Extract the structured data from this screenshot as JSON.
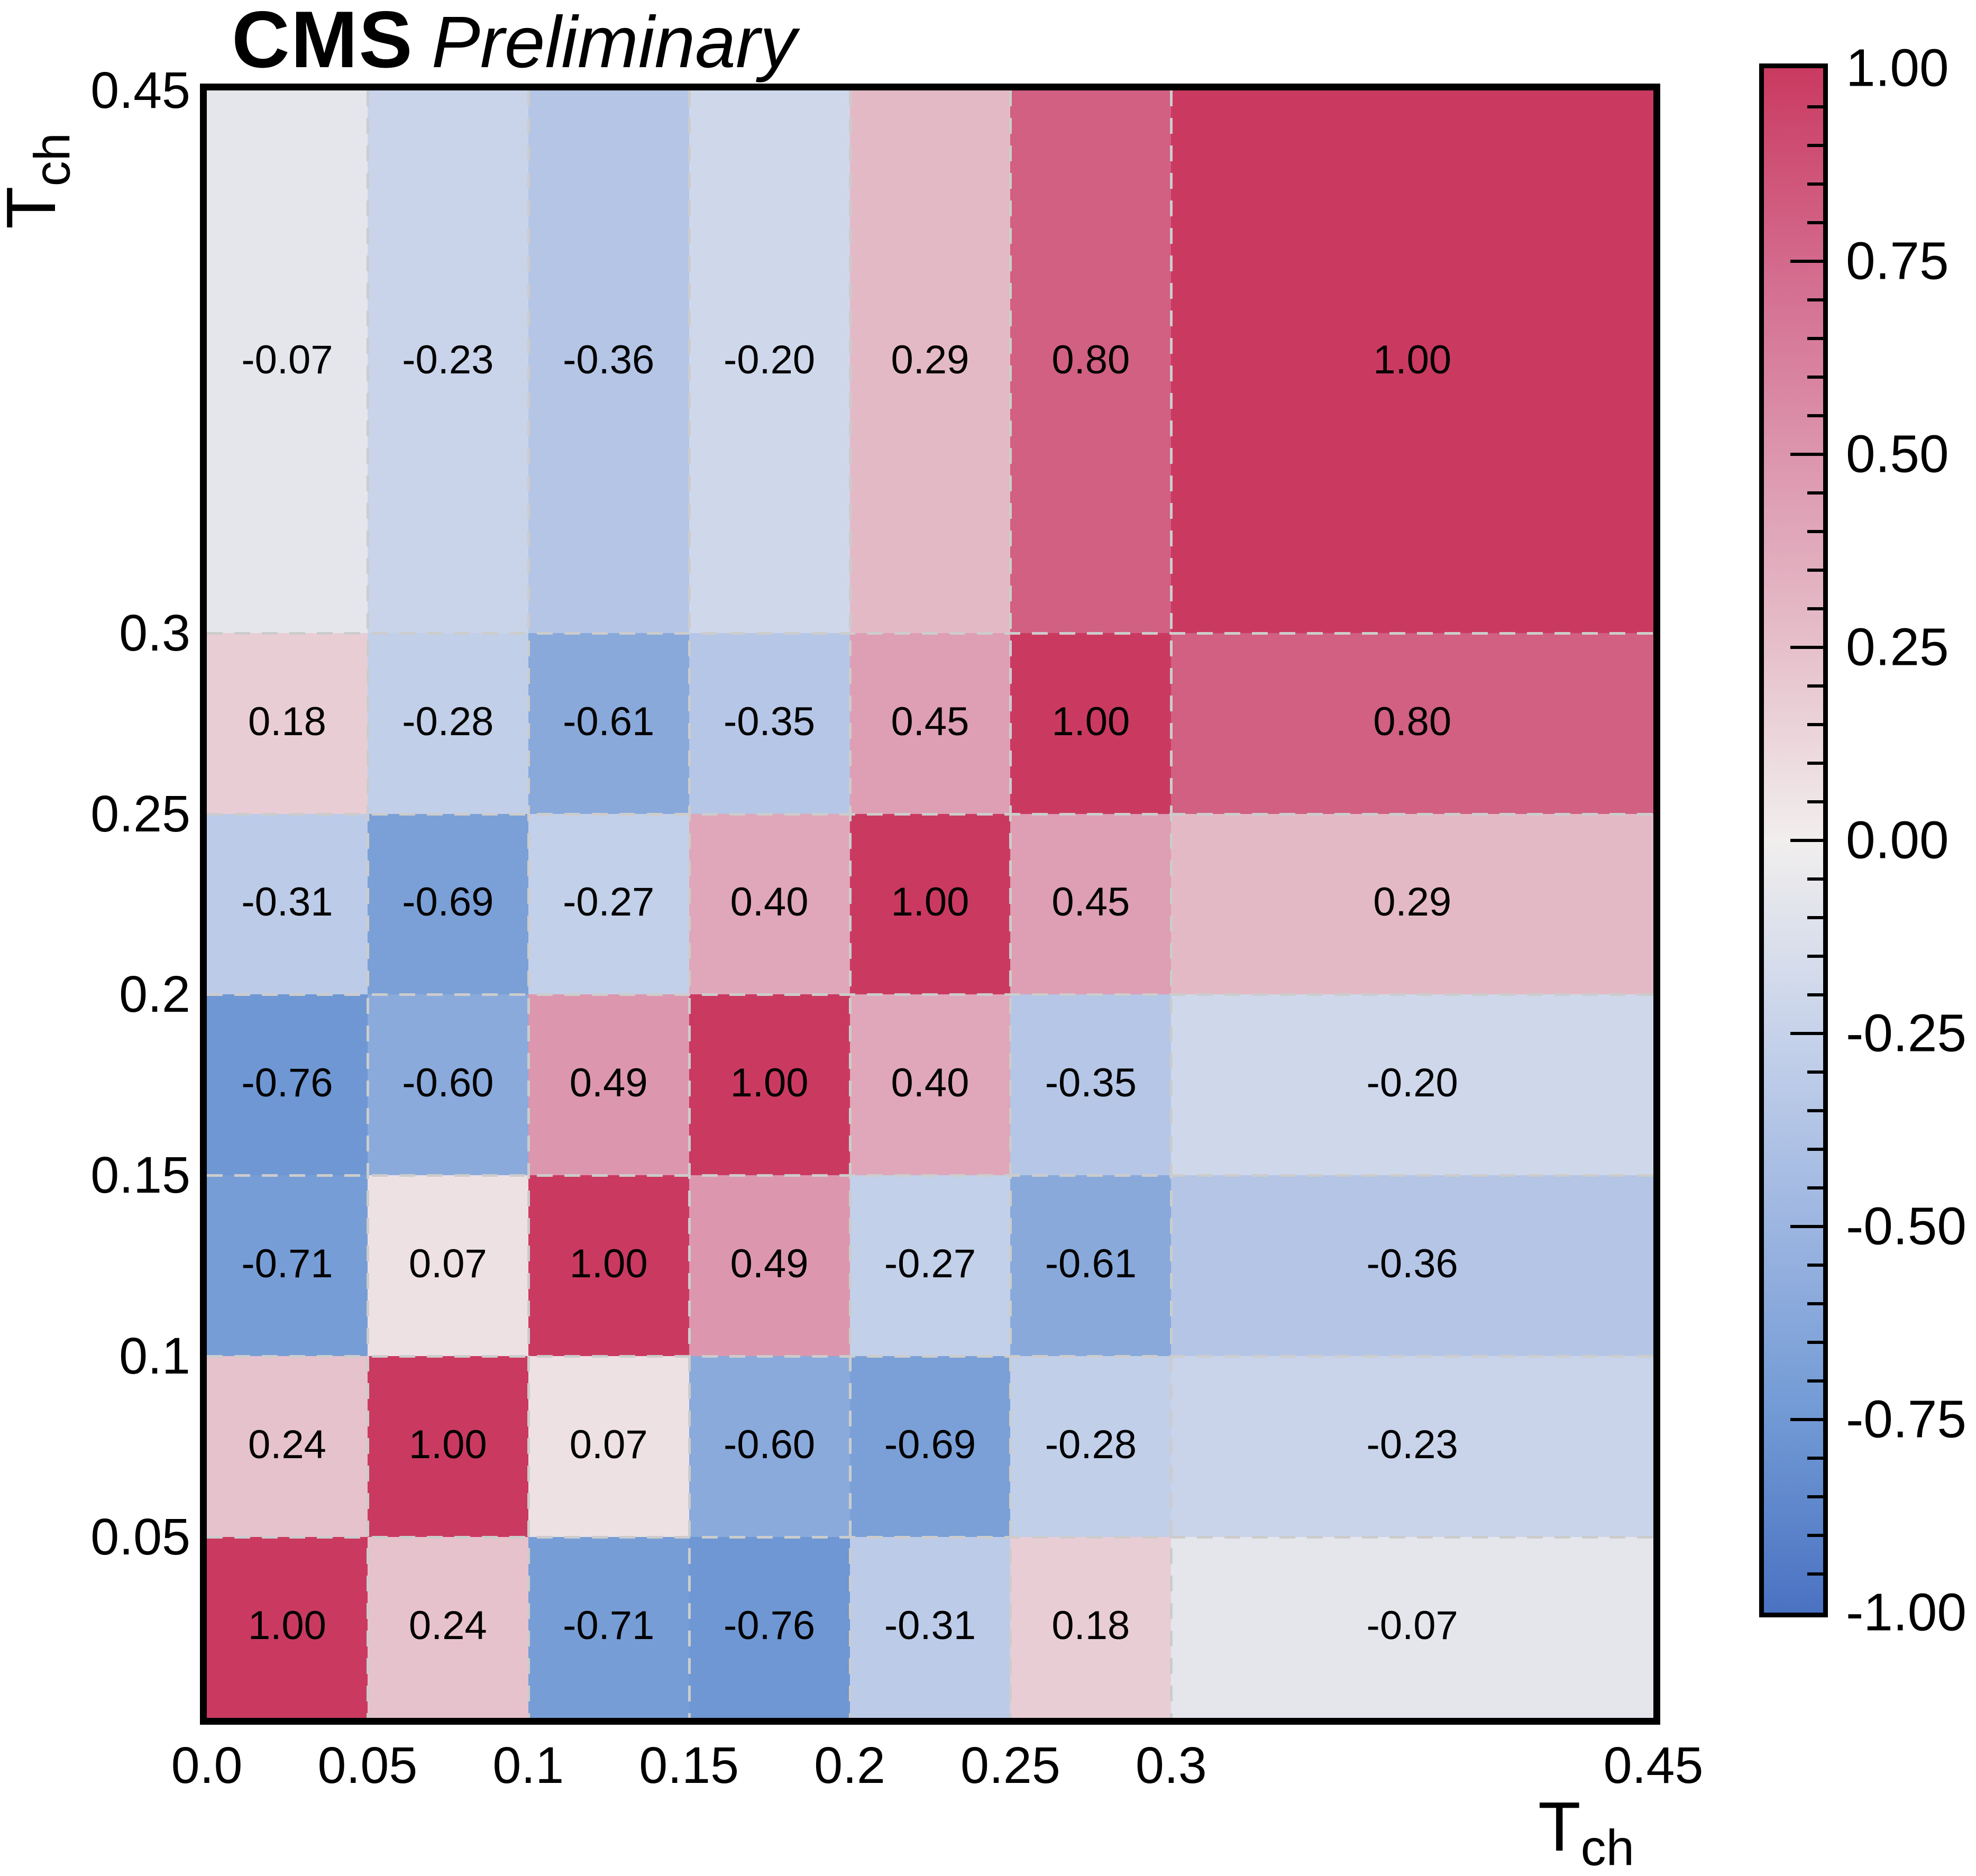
{
  "title": {
    "experiment": "CMS",
    "status": "Preliminary"
  },
  "x_axis": {
    "title_main": "T",
    "title_sub": "ch",
    "tick_labels": [
      "0.0",
      "0.05",
      "0.1",
      "0.15",
      "0.2",
      "0.25",
      "0.3",
      "0.45"
    ]
  },
  "y_axis": {
    "title_main": "T",
    "title_sub": "ch",
    "tick_labels": [
      "0.05",
      "0.1",
      "0.15",
      "0.2",
      "0.25",
      "0.3",
      "0.45"
    ]
  },
  "colorbar": {
    "min": -1.0,
    "max": 1.0,
    "major_tick_step": 0.25,
    "minor_tick_step": 0.05,
    "tick_labels": [
      "1.00",
      "0.75",
      "0.50",
      "0.25",
      "0.00",
      "-0.25",
      "-0.50",
      "-0.75",
      "-1.00"
    ]
  },
  "chart_data": {
    "type": "heatmap",
    "title": "CMS Preliminary",
    "xlabel": "T_ch",
    "ylabel": "T_ch",
    "bin_edges": [
      0.0,
      0.05,
      0.1,
      0.15,
      0.2,
      0.25,
      0.3,
      0.45
    ],
    "xlim": [
      0.0,
      0.45
    ],
    "ylim": [
      0.0,
      0.45
    ],
    "zlim": [
      -1.0,
      1.0
    ],
    "grid": "dashed at bin edges",
    "legend_position": "colorbar right",
    "row_order": "bottom_to_top",
    "matrix": [
      [
        1.0,
        0.24,
        -0.71,
        -0.76,
        -0.31,
        0.18,
        -0.07
      ],
      [
        0.24,
        1.0,
        0.07,
        -0.6,
        -0.69,
        -0.28,
        -0.23
      ],
      [
        -0.71,
        0.07,
        1.0,
        0.49,
        -0.27,
        -0.61,
        -0.36
      ],
      [
        -0.76,
        -0.6,
        0.49,
        1.0,
        0.4,
        -0.35,
        -0.2
      ],
      [
        -0.31,
        -0.69,
        -0.27,
        0.4,
        1.0,
        0.45,
        0.29
      ],
      [
        0.18,
        -0.28,
        -0.61,
        -0.35,
        0.45,
        1.0,
        0.8
      ],
      [
        -0.07,
        -0.23,
        -0.36,
        -0.2,
        0.29,
        0.8,
        1.0
      ]
    ],
    "colormap_stops": [
      [
        -1.0,
        "#4a72c2"
      ],
      [
        -0.75,
        "#7099d4"
      ],
      [
        -0.5,
        "#9cb5e1"
      ],
      [
        -0.25,
        "#c6d2ea"
      ],
      [
        0.0,
        "#f1eeed"
      ],
      [
        0.25,
        "#e6c0cb"
      ],
      [
        0.5,
        "#dc95ad"
      ],
      [
        0.75,
        "#d3698c"
      ],
      [
        1.0,
        "#ca3a60"
      ]
    ]
  }
}
